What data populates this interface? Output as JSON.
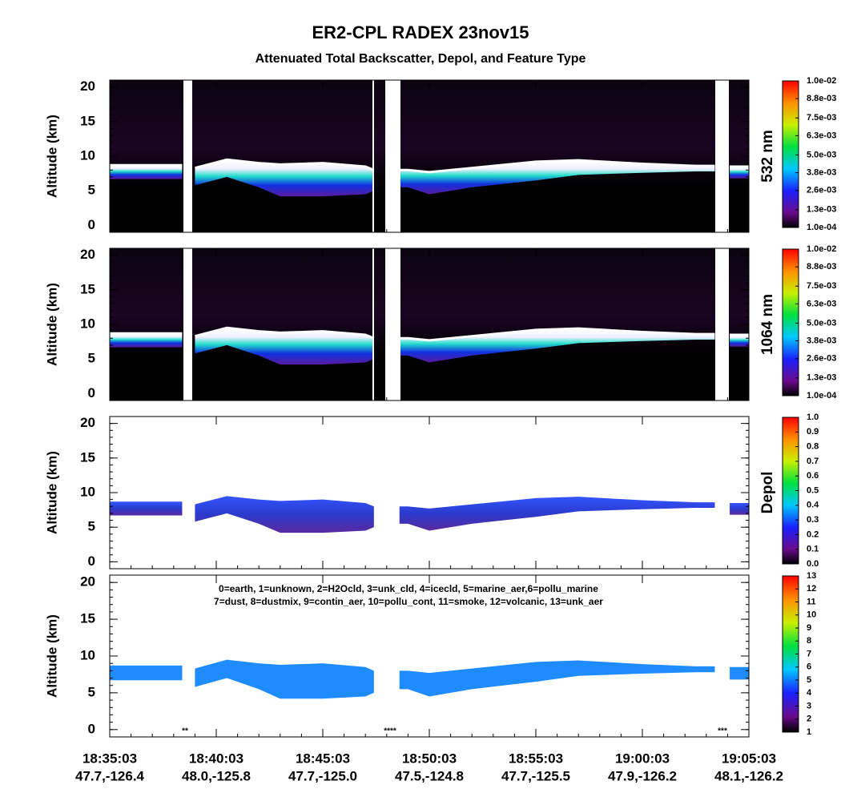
{
  "chart_data": {
    "type": "curtain",
    "title": "ER2-CPL RADEX 23nov15",
    "subtitle": "Attenuated Total Backscatter, Depol, and Feature Type",
    "xlim": [
      0,
      30
    ],
    "xticks": [
      {
        "value": 0,
        "label": "18:35:03"
      },
      {
        "value": 5,
        "label": "18:40:03"
      },
      {
        "value": 10,
        "label": "18:45:03"
      },
      {
        "value": 15,
        "label": "18:50:03"
      },
      {
        "value": 20,
        "label": "18:55:03"
      },
      {
        "value": 25,
        "label": "19:00:03"
      },
      {
        "value": 30,
        "label": "19:05:03"
      }
    ],
    "xtick_locations": [
      "47.7,-126.4",
      "48.0,-125.8",
      "47.7,-125.0",
      "47.5,-124.8",
      "47.7,-125.5",
      "47.9,-126.2",
      "48.1,-126.2"
    ],
    "x": [
      0,
      3.4,
      3.7,
      4,
      5.5,
      7,
      8,
      10,
      12,
      12.4,
      13,
      13.6,
      14,
      15,
      17,
      20,
      22,
      25,
      27.5,
      28.4,
      28.7,
      29.1,
      30
    ],
    "layer_top": [
      8.7,
      8.7,
      null,
      8.3,
      9.5,
      9,
      8.8,
      9,
      8.5,
      8,
      null,
      8,
      8,
      7.7,
      8.3,
      9.2,
      9.4,
      8.9,
      8.6,
      8.6,
      null,
      8.5,
      8.5
    ],
    "layer_base": [
      6.7,
      6.7,
      null,
      5.8,
      7,
      5.5,
      4.2,
      4.2,
      4.5,
      5,
      null,
      5.5,
      5.5,
      4.5,
      5.5,
      6.5,
      7.3,
      7.6,
      7.8,
      7.8,
      null,
      6.8,
      6.8
    ],
    "panels": [
      {
        "style": "backscatter",
        "ylabel": "Altitude (km)",
        "ylim": [
          -1,
          21
        ],
        "yticks": [
          0,
          5,
          10,
          15,
          20
        ],
        "colorbar_label": "532 nm",
        "colorbar_lim": [
          0.0001,
          0.01
        ],
        "colorbar_ticks": [
          {
            "value": 0.01,
            "label": "1.0e-02"
          },
          {
            "value": 0.0088,
            "label": "8.8e-03"
          },
          {
            "value": 0.0075,
            "label": "7.5e-03"
          },
          {
            "value": 0.0063,
            "label": "6.3e-03"
          },
          {
            "value": 0.005,
            "label": "5.0e-03"
          },
          {
            "value": 0.0038,
            "label": "3.8e-03"
          },
          {
            "value": 0.0026,
            "label": "2.6e-03"
          },
          {
            "value": 0.0013,
            "label": "1.3e-03"
          },
          {
            "value": 0.0001,
            "label": "1.0e-04"
          }
        ]
      },
      {
        "style": "backscatter",
        "ylabel": "Altitude (km)",
        "ylim": [
          -1,
          21
        ],
        "yticks": [
          0,
          5,
          10,
          15,
          20
        ],
        "colorbar_label": "1064 nm",
        "colorbar_lim": [
          0.0001,
          0.01
        ],
        "colorbar_ticks": [
          {
            "value": 0.01,
            "label": "1.0e-02"
          },
          {
            "value": 0.0088,
            "label": "8.8e-03"
          },
          {
            "value": 0.0075,
            "label": "7.5e-03"
          },
          {
            "value": 0.0063,
            "label": "6.3e-03"
          },
          {
            "value": 0.005,
            "label": "5.0e-03"
          },
          {
            "value": 0.0038,
            "label": "3.8e-03"
          },
          {
            "value": 0.0026,
            "label": "2.6e-03"
          },
          {
            "value": 0.0013,
            "label": "1.3e-03"
          },
          {
            "value": 0.0001,
            "label": "1.0e-04"
          }
        ]
      },
      {
        "style": "depol",
        "ylabel": "Altitude (km)",
        "ylim": [
          -1,
          21
        ],
        "yticks": [
          0,
          5,
          10,
          15,
          20
        ],
        "colorbar_label": "Depol",
        "colorbar_lim": [
          0,
          1
        ],
        "colorbar_ticks": [
          {
            "value": 1,
            "label": "1.0"
          },
          0.9,
          0.8,
          0.7,
          0.6,
          0.5,
          0.4,
          0.3,
          0.2,
          0.1,
          {
            "value": 0,
            "label": "0.0"
          }
        ]
      },
      {
        "style": "feature",
        "ylabel": "Altitude (km)",
        "ylim": [
          -1,
          21
        ],
        "yticks": [
          0,
          5,
          10,
          15,
          20
        ],
        "colorbar_lim": [
          1,
          13
        ],
        "colorbar_ticks": [
          13,
          12,
          11,
          10,
          9,
          8,
          7,
          6,
          5,
          4,
          3,
          2,
          1
        ],
        "legend": [
          "0=earth, 1=unknown, 2=H2Ocld, 3=unk_cld, 4=icecld, 5=marine_aer,6=pollu_marine",
          "7=dust, 8=dustmix, 9=contin_aer, 10=pollu_cont, 11=smoke, 12=volcanic, 13=unk_aer"
        ],
        "markers": [
          "**",
          "****",
          "***"
        ]
      }
    ]
  }
}
